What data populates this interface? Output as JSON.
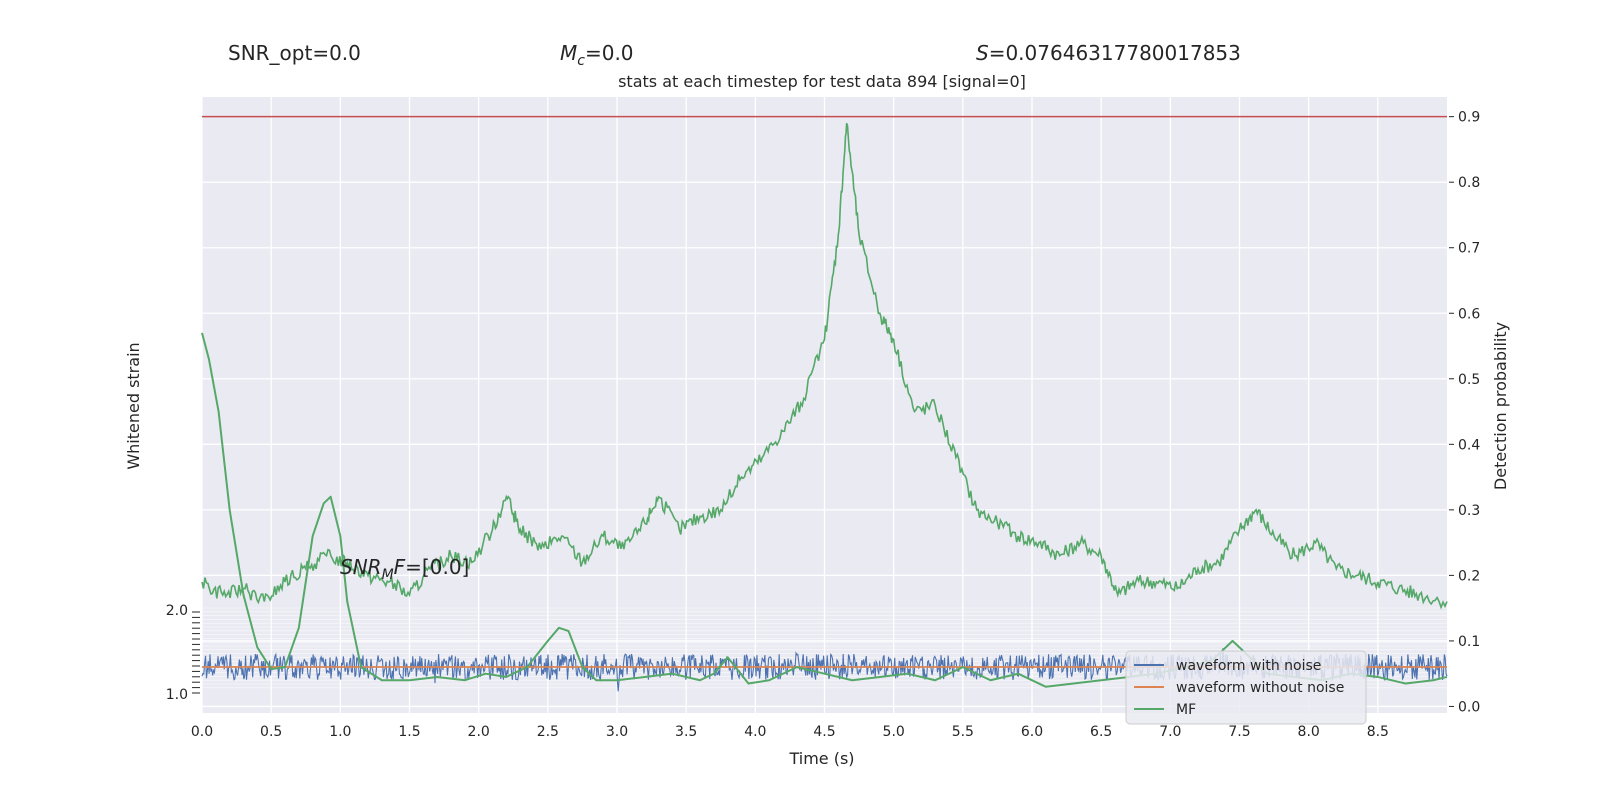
{
  "header": {
    "snr_opt": "SNR_opt=0.0",
    "mc_symbol": "M",
    "mc_sub": "c",
    "mc_value": "=0.0",
    "s_symbol": "S",
    "s_value": "=0.07646317780017853"
  },
  "chart_data": {
    "type": "line",
    "title": "stats at each timestep for test data 894 [signal=0]",
    "xlabel": "Time (s)",
    "ylabel_left": "Whitened strain",
    "ylabel_right": "Detection probability",
    "xlim": [
      0.0,
      9.0
    ],
    "ylim_right": [
      -0.01,
      0.93
    ],
    "x_ticks": [
      "0.0",
      "0.5",
      "1.0",
      "1.5",
      "2.0",
      "2.5",
      "3.0",
      "3.5",
      "4.0",
      "4.5",
      "5.0",
      "5.5",
      "6.0",
      "6.5",
      "7.0",
      "7.5",
      "8.0",
      "8.5"
    ],
    "y_ticks_right": [
      "0.0",
      "0.1",
      "0.2",
      "0.3",
      "0.4",
      "0.5",
      "0.6",
      "0.7",
      "0.8",
      "0.9"
    ],
    "y_ticks_left_top": "2.0",
    "y_ticks_left_bottom": "1.0",
    "threshold": 0.9,
    "annotation": {
      "prefix": "SNR",
      "sub": "M",
      "mid": "F",
      "suffix": "=[0.0]"
    },
    "legend": [
      "waveform with noise",
      "waveform without noise",
      "MF"
    ],
    "grid": true,
    "legend_position": "lower-right",
    "colors": {
      "detection": "#55a868",
      "threshold": "#c44e52",
      "noisy": "#4c72b0",
      "clean": "#dd8452",
      "mf": "#55a868",
      "plot_bg": "#eaeaf2",
      "grid": "#ffffff"
    },
    "detection_probability": {
      "x": [
        0.0,
        0.15,
        0.3,
        0.45,
        0.6,
        0.75,
        0.9,
        1.05,
        1.2,
        1.35,
        1.5,
        1.65,
        1.8,
        1.95,
        2.1,
        2.2,
        2.3,
        2.45,
        2.6,
        2.75,
        2.9,
        3.05,
        3.2,
        3.3,
        3.45,
        3.6,
        3.75,
        3.9,
        4.05,
        4.2,
        4.35,
        4.5,
        4.6,
        4.66,
        4.75,
        4.9,
        5.0,
        5.15,
        5.3,
        5.45,
        5.6,
        5.75,
        5.9,
        6.05,
        6.2,
        6.35,
        6.5,
        6.62,
        6.75,
        6.9,
        7.05,
        7.2,
        7.35,
        7.5,
        7.62,
        7.75,
        7.9,
        8.05,
        8.2,
        8.35,
        8.5,
        8.65,
        8.8,
        9.0
      ],
      "y": [
        0.19,
        0.17,
        0.18,
        0.16,
        0.19,
        0.21,
        0.23,
        0.22,
        0.2,
        0.19,
        0.17,
        0.21,
        0.23,
        0.22,
        0.27,
        0.32,
        0.27,
        0.24,
        0.26,
        0.22,
        0.26,
        0.24,
        0.28,
        0.32,
        0.27,
        0.29,
        0.3,
        0.35,
        0.38,
        0.42,
        0.47,
        0.56,
        0.72,
        0.89,
        0.72,
        0.6,
        0.56,
        0.45,
        0.46,
        0.38,
        0.3,
        0.28,
        0.26,
        0.25,
        0.23,
        0.25,
        0.23,
        0.17,
        0.19,
        0.19,
        0.18,
        0.21,
        0.22,
        0.27,
        0.3,
        0.26,
        0.23,
        0.25,
        0.21,
        0.2,
        0.19,
        0.18,
        0.17,
        0.16
      ]
    },
    "mf": {
      "x": [
        0.0,
        0.05,
        0.12,
        0.2,
        0.3,
        0.4,
        0.5,
        0.6,
        0.7,
        0.8,
        0.88,
        0.93,
        1.0,
        1.05,
        1.15,
        1.3,
        1.5,
        1.7,
        1.9,
        2.05,
        2.2,
        2.35,
        2.5,
        2.58,
        2.65,
        2.75,
        2.85,
        3.0,
        3.2,
        3.4,
        3.6,
        3.7,
        3.8,
        3.95,
        4.1,
        4.3,
        4.5,
        4.7,
        4.9,
        5.1,
        5.3,
        5.5,
        5.7,
        5.9,
        6.1,
        6.3,
        6.5,
        6.7,
        6.9,
        7.1,
        7.3,
        7.45,
        7.55,
        7.7,
        7.9,
        8.1,
        8.3,
        8.5,
        8.7,
        8.9,
        9.0
      ],
      "y": [
        0.57,
        0.53,
        0.45,
        0.3,
        0.17,
        0.09,
        0.057,
        0.06,
        0.12,
        0.26,
        0.31,
        0.32,
        0.26,
        0.16,
        0.06,
        0.04,
        0.04,
        0.045,
        0.04,
        0.05,
        0.045,
        0.06,
        0.1,
        0.12,
        0.115,
        0.06,
        0.04,
        0.04,
        0.045,
        0.05,
        0.04,
        0.05,
        0.075,
        0.035,
        0.04,
        0.06,
        0.05,
        0.04,
        0.045,
        0.05,
        0.04,
        0.06,
        0.04,
        0.05,
        0.03,
        0.035,
        0.04,
        0.045,
        0.05,
        0.06,
        0.07,
        0.1,
        0.08,
        0.05,
        0.045,
        0.04,
        0.05,
        0.045,
        0.035,
        0.04,
        0.045
      ]
    }
  }
}
